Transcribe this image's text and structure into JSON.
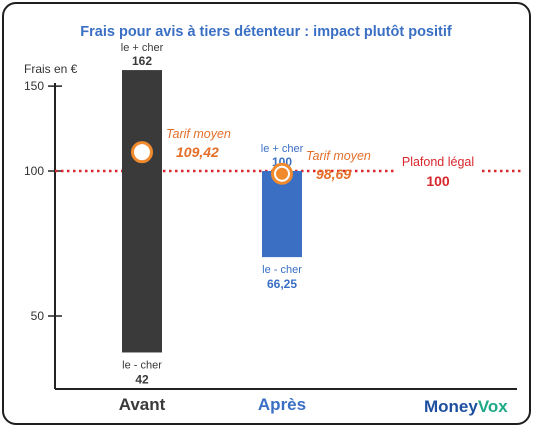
{
  "chart_data": {
    "type": "bar",
    "title": "Frais pour avis à tiers détenteur : impact plutôt positif",
    "ylabel": "Frais en €",
    "yticks": [
      50,
      100,
      150
    ],
    "categories": [
      "Avant",
      "Après"
    ],
    "series": [
      {
        "low": [
          42,
          66.25
        ],
        "high": [
          162,
          100
        ],
        "average": [
          109.42,
          98.69
        ]
      }
    ],
    "high_label": "le + cher",
    "low_label": "le - cher",
    "high_values_text": [
      "162",
      "100"
    ],
    "low_values_text": [
      "42",
      "66,25"
    ],
    "average_label": "Tarif moyen",
    "average_values_text": [
      "109,42",
      "98,69"
    ],
    "reference_line": {
      "label": "Plafond légal",
      "value": 100,
      "value_text": "100"
    }
  },
  "colors": {
    "title": "#3a6fc4",
    "bar_avant": "#3a3a3a",
    "bar_apres": "#3a6fc4",
    "label_avant": "#3a3a3a",
    "label_apres": "#3a6fc4",
    "average_marker": "#f08a2c",
    "reference_line": "#d8272d"
  },
  "branding": {
    "logo_part1": "Money",
    "logo_part2": "Vox"
  }
}
